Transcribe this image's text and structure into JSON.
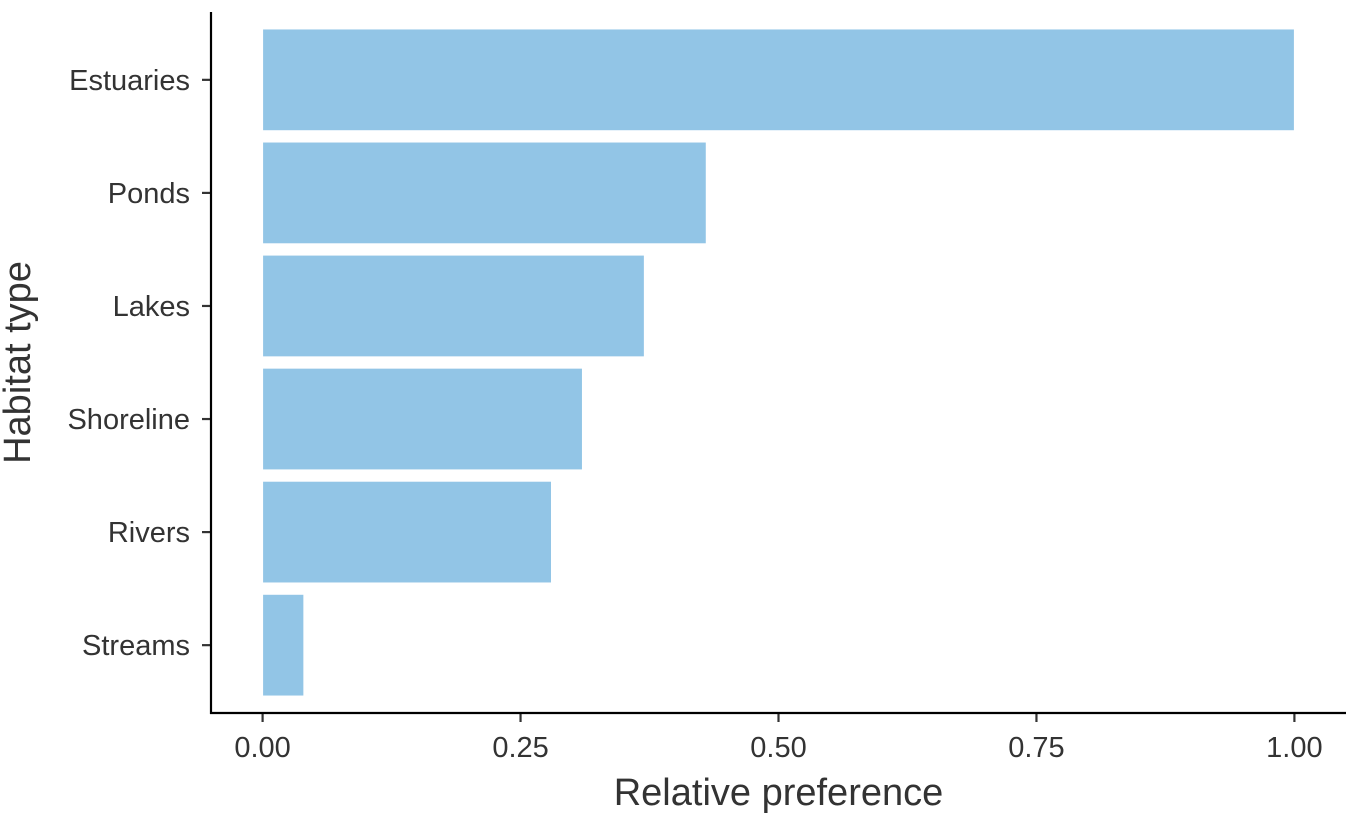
{
  "chart_data": {
    "type": "bar",
    "orientation": "horizontal",
    "categories": [
      "Streams",
      "Rivers",
      "Shoreline",
      "Lakes",
      "Ponds",
      "Estuaries"
    ],
    "values": [
      0.04,
      0.28,
      0.31,
      0.37,
      0.43,
      1.0
    ],
    "xlabel": "Relative preference",
    "ylabel": "Habitat type",
    "xlim": [
      -0.05,
      1.05
    ],
    "x_ticks": [
      0,
      0.25,
      0.5,
      0.75,
      1.0
    ],
    "x_tick_labels": [
      "0.00",
      "0.25",
      "0.50",
      "0.75",
      "1.00"
    ],
    "bar_color": "#92c5e6",
    "grid": false,
    "legend": "none"
  }
}
